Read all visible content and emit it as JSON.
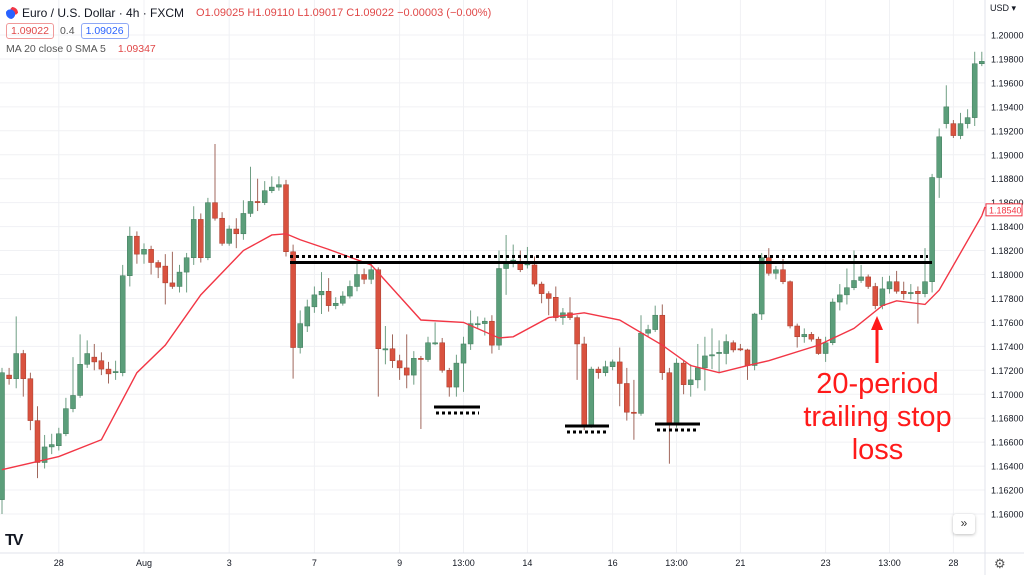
{
  "header": {
    "symbol_title": "Euro / U.S. Dollar · 4h · FXCM",
    "ohlc": "O1.09025 H1.09110 L1.09017 C1.09022 −0.00003 (−0.00%)",
    "bid": "1.09022",
    "spread": "0.4",
    "ask": "1.09026",
    "indicator_name": "MA 20 close 0 SMA 5",
    "indicator_value": "1.09347",
    "currency": "USD ▾"
  },
  "annotation": {
    "text": "20-period trailing stop loss",
    "lines": [
      "20-period",
      "trailing stop",
      "loss"
    ]
  },
  "icons": {
    "symbol": "euro-dollar-flag-icon",
    "logo": "tradingview-logo",
    "scroll": "double-chevron-right-icon",
    "settings": "gear-icon"
  },
  "logo_text": "TV",
  "nav_button": "»",
  "settings_glyph": "⚙",
  "colors": {
    "up": "#5b9e7a",
    "down": "#d9523f",
    "ma": "#f23645",
    "annotation": "#ff1a1a",
    "levels": "#000000"
  },
  "chart_data": {
    "type": "candlestick",
    "ylim": [
      1.1594,
      1.2024
    ],
    "y_ticks": [
      "1.20000",
      "1.19800",
      "1.19600",
      "1.19400",
      "1.19200",
      "1.19000",
      "1.18800",
      "1.18600",
      "1.18400",
      "1.18200",
      "1.18000",
      "1.17800",
      "1.17600",
      "1.17400",
      "1.17200",
      "1.17000",
      "1.16800",
      "1.16600",
      "1.16400",
      "1.16200",
      "1.16000"
    ],
    "x_ticks": [
      "28",
      "Aug",
      "3",
      "7",
      "9",
      "13:00",
      "14",
      "16",
      "13:00",
      "21",
      "23",
      "13:00",
      "28"
    ],
    "last_ma_label": "1.18540",
    "resistance_level": 1.181,
    "candles": [
      [
        1.1612,
        1.1722,
        1.16,
        1.1718
      ],
      [
        1.1716,
        1.1722,
        1.1708,
        1.1713
      ],
      [
        1.1713,
        1.1765,
        1.1705,
        1.1734
      ],
      [
        1.1734,
        1.1737,
        1.1698,
        1.1713
      ],
      [
        1.1713,
        1.1718,
        1.167,
        1.1678
      ],
      [
        1.1678,
        1.169,
        1.163,
        1.1643
      ],
      [
        1.1643,
        1.1666,
        1.1638,
        1.1656
      ],
      [
        1.1656,
        1.1667,
        1.165,
        1.1658
      ],
      [
        1.1657,
        1.1672,
        1.1653,
        1.1667
      ],
      [
        1.1667,
        1.1697,
        1.1665,
        1.1688
      ],
      [
        1.1688,
        1.1731,
        1.1685,
        1.1699
      ],
      [
        1.1699,
        1.175,
        1.1697,
        1.1725
      ],
      [
        1.1725,
        1.1745,
        1.1722,
        1.1734
      ],
      [
        1.1731,
        1.1742,
        1.172,
        1.1727
      ],
      [
        1.1728,
        1.1735,
        1.1716,
        1.1721
      ],
      [
        1.1721,
        1.1727,
        1.1709,
        1.1717
      ],
      [
        1.1718,
        1.1728,
        1.1712,
        1.1719
      ],
      [
        1.1718,
        1.1808,
        1.1715,
        1.1799
      ],
      [
        1.1799,
        1.184,
        1.179,
        1.1832
      ],
      [
        1.1832,
        1.1836,
        1.1809,
        1.1817
      ],
      [
        1.1817,
        1.1826,
        1.1809,
        1.1821
      ],
      [
        1.1821,
        1.1824,
        1.18,
        1.181
      ],
      [
        1.181,
        1.1812,
        1.1797,
        1.1806
      ],
      [
        1.1807,
        1.1817,
        1.1775,
        1.1793
      ],
      [
        1.1793,
        1.1819,
        1.1788,
        1.179
      ],
      [
        1.179,
        1.1808,
        1.1785,
        1.1802
      ],
      [
        1.1802,
        1.1818,
        1.1785,
        1.1814
      ],
      [
        1.1814,
        1.1857,
        1.1808,
        1.1846
      ],
      [
        1.1846,
        1.1851,
        1.181,
        1.1814
      ],
      [
        1.1814,
        1.1864,
        1.1812,
        1.186
      ],
      [
        1.186,
        1.1909,
        1.1845,
        1.1847
      ],
      [
        1.1847,
        1.1852,
        1.1824,
        1.1826
      ],
      [
        1.1826,
        1.1841,
        1.1824,
        1.1838
      ],
      [
        1.1838,
        1.1847,
        1.1822,
        1.1834
      ],
      [
        1.1834,
        1.1862,
        1.1829,
        1.1851
      ],
      [
        1.1851,
        1.189,
        1.1848,
        1.1861
      ],
      [
        1.1861,
        1.188,
        1.1853,
        1.186
      ],
      [
        1.186,
        1.1878,
        1.1858,
        1.187
      ],
      [
        1.187,
        1.1882,
        1.1868,
        1.1873
      ],
      [
        1.1873,
        1.1882,
        1.187,
        1.1875
      ],
      [
        1.1875,
        1.1879,
        1.1815,
        1.1819
      ],
      [
        1.1819,
        1.1825,
        1.1713,
        1.1739
      ],
      [
        1.1739,
        1.177,
        1.1734,
        1.1759
      ],
      [
        1.1757,
        1.1779,
        1.1752,
        1.1773
      ],
      [
        1.1773,
        1.179,
        1.1768,
        1.1783
      ],
      [
        1.1783,
        1.1802,
        1.1767,
        1.1786
      ],
      [
        1.1786,
        1.1797,
        1.1769,
        1.1774
      ],
      [
        1.1774,
        1.1781,
        1.1771,
        1.1776
      ],
      [
        1.1776,
        1.1786,
        1.1774,
        1.1782
      ],
      [
        1.1782,
        1.1795,
        1.178,
        1.179
      ],
      [
        1.179,
        1.181,
        1.1786,
        1.18
      ],
      [
        1.18,
        1.1805,
        1.1792,
        1.1796
      ],
      [
        1.1796,
        1.1809,
        1.1792,
        1.1804
      ],
      [
        1.1804,
        1.1806,
        1.1698,
        1.1738
      ],
      [
        1.1738,
        1.1757,
        1.1725,
        1.1738
      ],
      [
        1.1738,
        1.175,
        1.1722,
        1.1728
      ],
      [
        1.1728,
        1.1733,
        1.1712,
        1.1722
      ],
      [
        1.1722,
        1.175,
        1.1705,
        1.1716
      ],
      [
        1.1716,
        1.1736,
        1.1708,
        1.173
      ],
      [
        1.173,
        1.1732,
        1.1671,
        1.1729
      ],
      [
        1.1729,
        1.1748,
        1.1727,
        1.1743
      ],
      [
        1.1743,
        1.176,
        1.1741,
        1.1743
      ],
      [
        1.1743,
        1.1747,
        1.1718,
        1.172
      ],
      [
        1.172,
        1.1722,
        1.1698,
        1.1706
      ],
      [
        1.1706,
        1.1733,
        1.1698,
        1.1726
      ],
      [
        1.1726,
        1.1748,
        1.1702,
        1.1742
      ],
      [
        1.1742,
        1.177,
        1.1737,
        1.1759
      ],
      [
        1.1759,
        1.1765,
        1.1755,
        1.1759
      ],
      [
        1.1759,
        1.1764,
        1.1749,
        1.1761
      ],
      [
        1.1761,
        1.1766,
        1.1734,
        1.1741
      ],
      [
        1.1741,
        1.182,
        1.1737,
        1.1805
      ],
      [
        1.1805,
        1.1833,
        1.1783,
        1.181
      ],
      [
        1.1811,
        1.1825,
        1.1806,
        1.1812
      ],
      [
        1.1809,
        1.182,
        1.1802,
        1.1804
      ],
      [
        1.1809,
        1.1823,
        1.1805,
        1.1809
      ],
      [
        1.1808,
        1.1815,
        1.179,
        1.1792
      ],
      [
        1.1792,
        1.1794,
        1.1776,
        1.1784
      ],
      [
        1.1784,
        1.1786,
        1.1766,
        1.178
      ],
      [
        1.1781,
        1.179,
        1.1761,
        1.1764
      ],
      [
        1.1764,
        1.1772,
        1.1758,
        1.1768
      ],
      [
        1.1768,
        1.1781,
        1.1762,
        1.1764
      ],
      [
        1.1764,
        1.1766,
        1.1712,
        1.1742
      ],
      [
        1.1742,
        1.1748,
        1.167,
        1.1673
      ],
      [
        1.1673,
        1.1723,
        1.1672,
        1.1721
      ],
      [
        1.1721,
        1.1723,
        1.1713,
        1.1718
      ],
      [
        1.1718,
        1.1728,
        1.1715,
        1.1723
      ],
      [
        1.1723,
        1.1729,
        1.172,
        1.1727
      ],
      [
        1.1727,
        1.1739,
        1.169,
        1.1709
      ],
      [
        1.1709,
        1.1722,
        1.1678,
        1.1685
      ],
      [
        1.1685,
        1.1712,
        1.1662,
        1.1684
      ],
      [
        1.1684,
        1.1766,
        1.1682,
        1.1751
      ],
      [
        1.1751,
        1.1758,
        1.1748,
        1.1754
      ],
      [
        1.1754,
        1.1774,
        1.1752,
        1.1766
      ],
      [
        1.1766,
        1.1775,
        1.1712,
        1.1718
      ],
      [
        1.1718,
        1.1722,
        1.1642,
        1.1676
      ],
      [
        1.1676,
        1.173,
        1.1672,
        1.1726
      ],
      [
        1.1726,
        1.1728,
        1.17,
        1.1708
      ],
      [
        1.1708,
        1.1725,
        1.1698,
        1.1712
      ],
      [
        1.1712,
        1.1742,
        1.1705,
        1.1722
      ],
      [
        1.1722,
        1.1748,
        1.1703,
        1.1732
      ],
      [
        1.1732,
        1.1755,
        1.1721,
        1.1733
      ],
      [
        1.1734,
        1.1745,
        1.1718,
        1.1735
      ],
      [
        1.1734,
        1.175,
        1.1725,
        1.1744
      ],
      [
        1.1743,
        1.1745,
        1.1735,
        1.1737
      ],
      [
        1.1738,
        1.1742,
        1.1736,
        1.1737
      ],
      [
        1.1737,
        1.1738,
        1.1712,
        1.1724
      ],
      [
        1.1724,
        1.1768,
        1.172,
        1.1767
      ],
      [
        1.1767,
        1.1818,
        1.1762,
        1.1814
      ],
      [
        1.1814,
        1.1822,
        1.1799,
        1.1801
      ],
      [
        1.1801,
        1.1807,
        1.1796,
        1.1804
      ],
      [
        1.1804,
        1.1813,
        1.1792,
        1.1794
      ],
      [
        1.1794,
        1.1795,
        1.1755,
        1.1757
      ],
      [
        1.1757,
        1.1759,
        1.1739,
        1.1748
      ],
      [
        1.1748,
        1.1755,
        1.1743,
        1.175
      ],
      [
        1.175,
        1.1752,
        1.1744,
        1.1746
      ],
      [
        1.1746,
        1.1748,
        1.1733,
        1.1734
      ],
      [
        1.1734,
        1.1748,
        1.1727,
        1.1743
      ],
      [
        1.1743,
        1.178,
        1.1741,
        1.1777
      ],
      [
        1.1777,
        1.1792,
        1.177,
        1.1783
      ],
      [
        1.1783,
        1.1805,
        1.1775,
        1.1789
      ],
      [
        1.1789,
        1.182,
        1.1787,
        1.1795
      ],
      [
        1.1795,
        1.1808,
        1.1793,
        1.1798
      ],
      [
        1.1798,
        1.18,
        1.1788,
        1.179
      ],
      [
        1.179,
        1.1793,
        1.1771,
        1.1774
      ],
      [
        1.1774,
        1.1798,
        1.1771,
        1.1788
      ],
      [
        1.1788,
        1.1799,
        1.1784,
        1.1794
      ],
      [
        1.1794,
        1.1803,
        1.1784,
        1.1786
      ],
      [
        1.1786,
        1.1794,
        1.1779,
        1.1784
      ],
      [
        1.1784,
        1.1792,
        1.1779,
        1.1785
      ],
      [
        1.1786,
        1.179,
        1.1759,
        1.1784
      ],
      [
        1.1784,
        1.1822,
        1.1781,
        1.1794
      ],
      [
        1.1794,
        1.1884,
        1.1785,
        1.1881
      ],
      [
        1.1881,
        1.1922,
        1.1864,
        1.1915
      ],
      [
        1.1926,
        1.1958,
        1.1922,
        1.194
      ],
      [
        1.1926,
        1.1929,
        1.1914,
        1.1916
      ],
      [
        1.1916,
        1.1935,
        1.1913,
        1.1926
      ],
      [
        1.1926,
        1.1938,
        1.1922,
        1.1931
      ],
      [
        1.1931,
        1.1986,
        1.1924,
        1.1976
      ],
      [
        1.1976,
        1.1986,
        1.1974,
        1.1978
      ]
    ],
    "ma20_points": [
      [
        0,
        1.1637
      ],
      [
        8,
        1.1648
      ],
      [
        14,
        1.1662
      ],
      [
        19,
        1.1718
      ],
      [
        23,
        1.1741
      ],
      [
        28,
        1.1783
      ],
      [
        34,
        1.182
      ],
      [
        38,
        1.1833
      ],
      [
        40,
        1.1834
      ],
      [
        42,
        1.1829
      ],
      [
        46,
        1.1821
      ],
      [
        52,
        1.1808
      ],
      [
        59,
        1.1762
      ],
      [
        65,
        1.176
      ],
      [
        70,
        1.1747
      ],
      [
        72,
        1.1748
      ],
      [
        77,
        1.1764
      ],
      [
        82,
        1.1768
      ],
      [
        87,
        1.1762
      ],
      [
        93,
        1.1741
      ],
      [
        97,
        1.1724
      ],
      [
        101,
        1.1718
      ],
      [
        105,
        1.1724
      ],
      [
        108,
        1.1728
      ],
      [
        115,
        1.1741
      ],
      [
        120,
        1.1755
      ],
      [
        124,
        1.1774
      ],
      [
        126,
        1.1778
      ],
      [
        130,
        1.1775
      ],
      [
        132,
        1.1787
      ],
      [
        138,
        1.1849
      ]
    ]
  }
}
